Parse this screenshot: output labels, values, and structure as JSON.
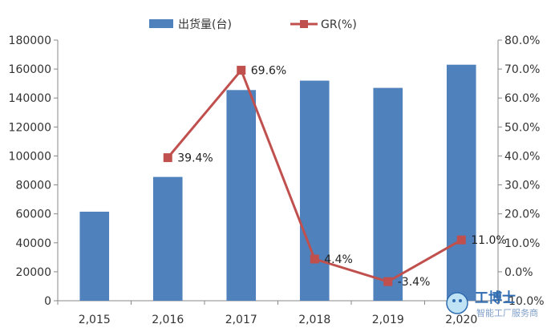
{
  "chart_data": {
    "type": "bar+line",
    "categories": [
      "2,015",
      "2,016",
      "2,017",
      "2,018",
      "2,019",
      "2,020"
    ],
    "series": [
      {
        "name": "出货量(台)",
        "type": "bar",
        "axis": "left",
        "color": "#4f81bd",
        "values": [
          61500,
          85500,
          145500,
          152000,
          147000,
          163000
        ]
      },
      {
        "name": "GR(%)",
        "type": "line",
        "axis": "right",
        "color": "#c0504d",
        "values": [
          null,
          39.4,
          69.6,
          4.4,
          -3.4,
          11.0
        ],
        "data_labels": [
          "",
          "39.4%",
          "69.6%",
          "4.4%",
          "-3.4%",
          "11.0%"
        ]
      }
    ],
    "y_left": {
      "range": [
        0,
        180000
      ],
      "ticks": [
        "0",
        "20000",
        "40000",
        "60000",
        "80000",
        "100000",
        "120000",
        "140000",
        "160000",
        "180000"
      ]
    },
    "y_right": {
      "range": [
        -10,
        80
      ],
      "ticks": [
        "-10.0%",
        "0.0%",
        "10.0%",
        "20.0%",
        "30.0%",
        "40.0%",
        "50.0%",
        "60.0%",
        "70.0%",
        "80.0%"
      ]
    },
    "grid": false,
    "legend_position": "top-center"
  },
  "watermark": {
    "main_text": "工博士",
    "sub_text": "智能工厂服务商"
  }
}
